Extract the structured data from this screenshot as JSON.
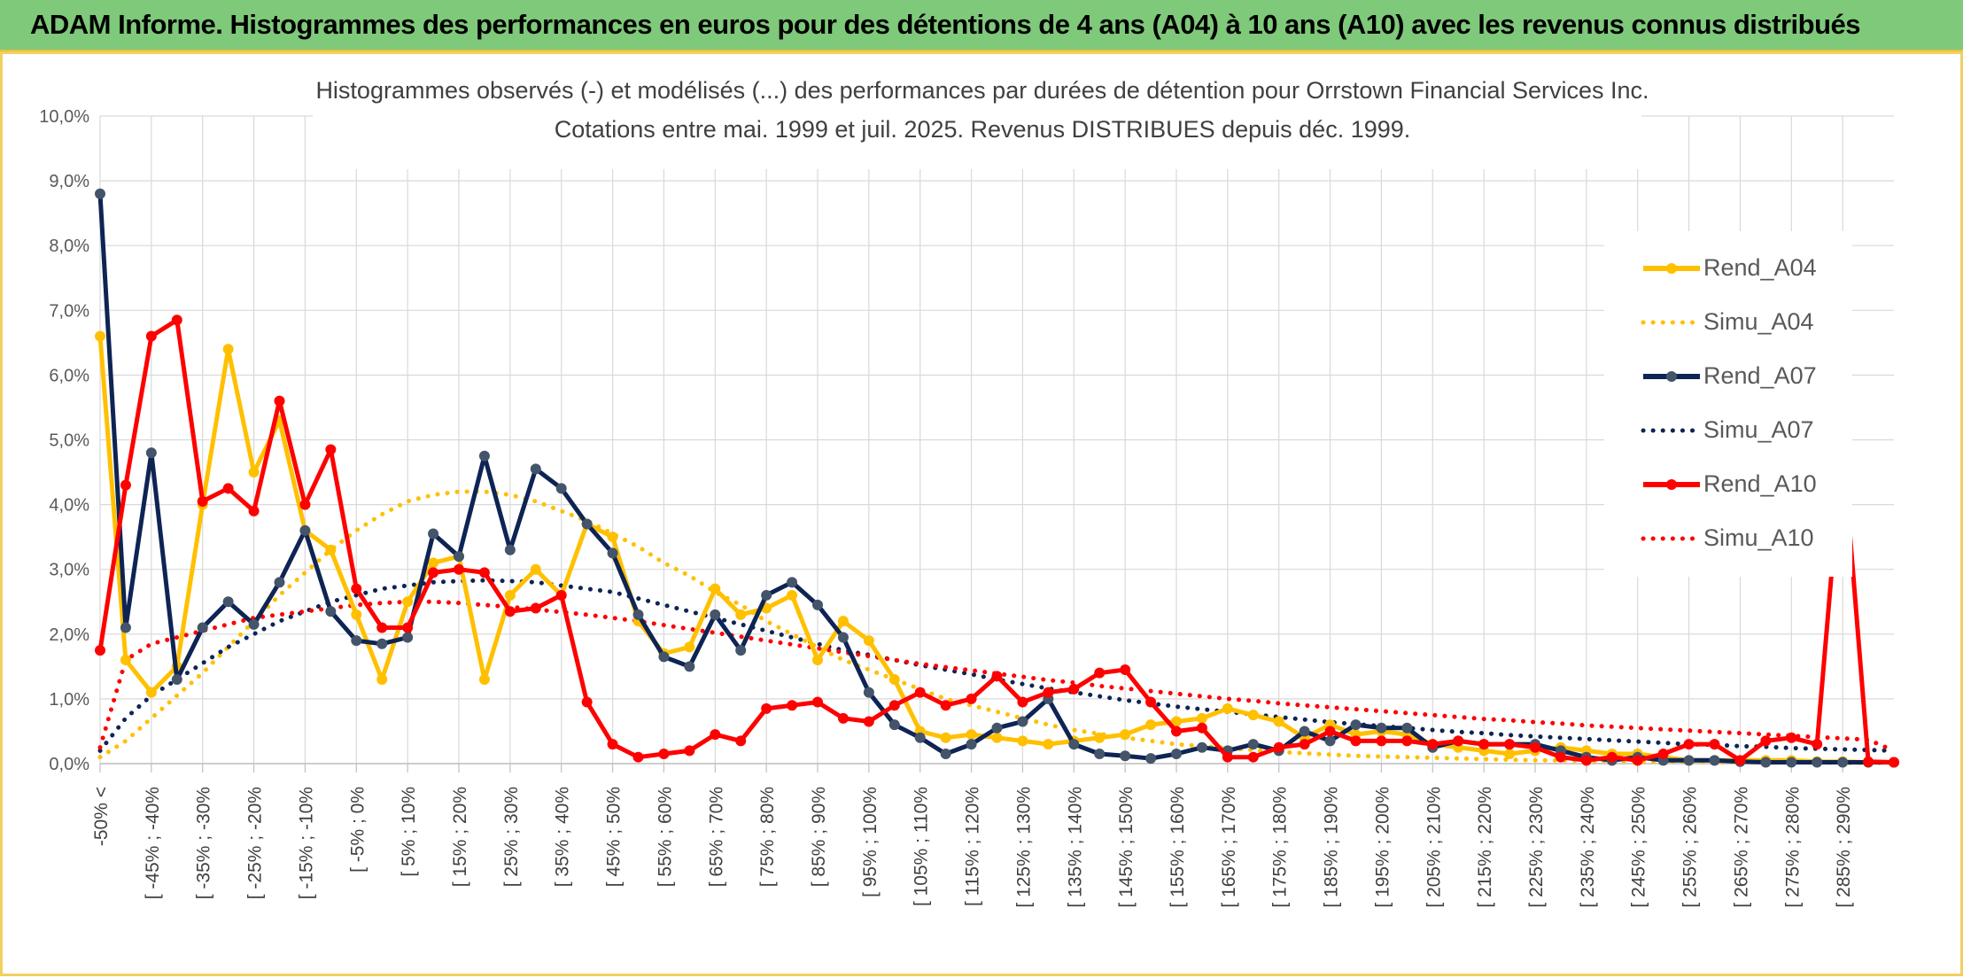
{
  "banner": {
    "title": "ADAM Informe. Histogrammes des performances en euros pour des détentions de 4 ans (A04) à 10 ans (A10) avec les revenus connus distribués"
  },
  "colors": {
    "banner_bg": "#7fc97a",
    "A04": "#ffc000",
    "A07": "#0e2454",
    "A10": "#ff0000",
    "A07_marker": "#44546a",
    "grid": "#d9d9d9"
  },
  "chart_data": {
    "type": "line",
    "title": "Histogrammes observés (-) et modélisés (...) des performances par durées de détention pour Orrstown Financial Services Inc.",
    "subtitle": "Cotations entre mai. 1999 et juil. 2025. Revenus DISTRIBUES depuis déc. 1999.",
    "xlabel": "",
    "ylabel": "",
    "ylim": [
      0,
      10
    ],
    "y_ticks": [
      "0,0%",
      "1,0%",
      "2,0%",
      "3,0%",
      "4,0%",
      "5,0%",
      "6,0%",
      "7,0%",
      "8,0%",
      "9,0%",
      "10,0%"
    ],
    "grid": true,
    "legend_position": "right",
    "x_tick_labels": [
      "-50% <",
      "[ -45% ; -40%",
      "[ -35% ; -30%",
      "[ -25% ; -20%",
      "[ -15% ; -10%",
      "[ -5% ; 0%",
      "[ 5% ; 10%",
      "[ 15% ; 20%",
      "[ 25% ; 30%",
      "[ 35% ; 40%",
      "[ 45% ; 50%",
      "[ 55% ; 60%",
      "[ 65% ; 70%",
      "[ 75% ; 80%",
      "[ 85% ; 90%",
      "[ 95% ; 100%",
      "[ 105% ; 110%",
      "[ 115% ; 120%",
      "[ 125% ; 130%",
      "[ 135% ; 140%",
      "[ 145% ; 150%",
      "[ 155% ; 160%",
      "[ 165% ; 170%",
      "[ 175% ; 180%",
      "[ 185% ; 190%",
      "[ 195% ; 200%",
      "[ 205% ; 210%",
      "[ 215% ; 220%",
      "[ 225% ; 230%",
      "[ 235% ; 240%",
      "[ 245% ; 250%",
      "[ 255% ; 260%",
      "[ 265% ; 270%",
      "[ 275% ; 280%",
      "[ 285% ; 290%"
    ],
    "series": [
      {
        "name": "Rend_A04",
        "style": "solid",
        "color": "#ffc000",
        "values": [
          6.6,
          1.6,
          1.1,
          1.5,
          4.0,
          6.4,
          4.5,
          5.3,
          3.6,
          3.3,
          2.3,
          1.3,
          2.5,
          3.1,
          3.2,
          1.3,
          2.6,
          3.0,
          2.6,
          3.7,
          3.5,
          2.2,
          1.7,
          1.8,
          2.7,
          2.3,
          2.4,
          2.6,
          1.6,
          2.2,
          1.9,
          1.3,
          0.5,
          0.4,
          0.45,
          0.4,
          0.35,
          0.3,
          0.35,
          0.4,
          0.45,
          0.6,
          0.65,
          0.7,
          0.85,
          0.75,
          0.65,
          0.4,
          0.6,
          0.45,
          0.5,
          0.45,
          0.3,
          0.25,
          0.2,
          0.15,
          0.2,
          0.25,
          0.2,
          0.15,
          0.15,
          0.1,
          0.05,
          0.05,
          0.05,
          0.05,
          0.05,
          0.03,
          0.03,
          0.02,
          0.02
        ]
      },
      {
        "name": "Simu_A04",
        "style": "dotted",
        "color": "#ffc000",
        "values": [
          0.1,
          0.35,
          0.7,
          1.05,
          1.4,
          1.8,
          2.2,
          2.6,
          2.95,
          3.3,
          3.6,
          3.85,
          4.05,
          4.15,
          4.2,
          4.2,
          4.15,
          4.05,
          3.9,
          3.75,
          3.55,
          3.35,
          3.1,
          2.9,
          2.65,
          2.45,
          2.2,
          2.0,
          1.8,
          1.6,
          1.45,
          1.3,
          1.15,
          1.0,
          0.9,
          0.8,
          0.7,
          0.6,
          0.52,
          0.46,
          0.4,
          0.35,
          0.3,
          0.27,
          0.24,
          0.21,
          0.18,
          0.16,
          0.14,
          0.12,
          0.11,
          0.1,
          0.09,
          0.08,
          0.07,
          0.06,
          0.05,
          0.05,
          0.04,
          0.04,
          0.03,
          0.03,
          0.03,
          0.02,
          0.02,
          0.02,
          0.02,
          0.02,
          0.01,
          0.01,
          0.01
        ]
      },
      {
        "name": "Rend_A07",
        "style": "solid",
        "color": "#0e2454",
        "values": [
          8.8,
          2.1,
          4.8,
          1.3,
          2.1,
          2.5,
          2.15,
          2.8,
          3.6,
          2.35,
          1.9,
          1.85,
          1.95,
          3.55,
          3.2,
          4.75,
          3.3,
          4.55,
          4.25,
          3.7,
          3.25,
          2.3,
          1.65,
          1.5,
          2.3,
          1.75,
          2.6,
          2.8,
          2.45,
          1.95,
          1.1,
          0.6,
          0.4,
          0.15,
          0.3,
          0.55,
          0.65,
          1.0,
          0.3,
          0.15,
          0.12,
          0.08,
          0.15,
          0.25,
          0.2,
          0.3,
          0.2,
          0.5,
          0.35,
          0.6,
          0.55,
          0.55,
          0.25,
          0.35,
          0.3,
          0.3,
          0.3,
          0.2,
          0.1,
          0.05,
          0.1,
          0.05,
          0.05,
          0.05,
          0.03,
          0.02,
          0.02,
          0.02,
          0.02,
          0.02,
          0.02
        ]
      },
      {
        "name": "Simu_A07",
        "style": "dotted",
        "color": "#0e2454",
        "values": [
          0.2,
          0.7,
          1.05,
          1.3,
          1.55,
          1.8,
          2.0,
          2.2,
          2.35,
          2.5,
          2.6,
          2.7,
          2.75,
          2.8,
          2.82,
          2.83,
          2.82,
          2.8,
          2.75,
          2.7,
          2.65,
          2.55,
          2.45,
          2.35,
          2.25,
          2.15,
          2.05,
          1.95,
          1.85,
          1.75,
          1.68,
          1.6,
          1.52,
          1.45,
          1.38,
          1.3,
          1.23,
          1.16,
          1.1,
          1.04,
          0.98,
          0.93,
          0.88,
          0.84,
          0.8,
          0.76,
          0.72,
          0.68,
          0.64,
          0.61,
          0.58,
          0.55,
          0.52,
          0.49,
          0.47,
          0.44,
          0.42,
          0.4,
          0.38,
          0.36,
          0.34,
          0.32,
          0.3,
          0.29,
          0.27,
          0.26,
          0.24,
          0.23,
          0.22,
          0.21,
          0.2
        ]
      },
      {
        "name": "Rend_A10",
        "style": "solid",
        "color": "#ff0000",
        "values": [
          1.75,
          4.3,
          6.6,
          6.85,
          4.05,
          4.25,
          3.9,
          5.6,
          4.0,
          4.85,
          2.7,
          2.1,
          2.1,
          2.95,
          3.0,
          2.95,
          2.35,
          2.4,
          2.6,
          0.95,
          0.3,
          0.1,
          0.15,
          0.2,
          0.45,
          0.35,
          0.85,
          0.9,
          0.95,
          0.7,
          0.65,
          0.9,
          1.1,
          0.9,
          1.0,
          1.35,
          0.95,
          1.1,
          1.15,
          1.4,
          1.45,
          0.95,
          0.5,
          0.55,
          0.1,
          0.1,
          0.25,
          0.3,
          0.5,
          0.35,
          0.35,
          0.35,
          0.3,
          0.35,
          0.3,
          0.3,
          0.25,
          0.1,
          0.05,
          0.1,
          0.05,
          0.15,
          0.3,
          0.3,
          0.05,
          0.35,
          0.4,
          0.3,
          4.95,
          0.03,
          0.02
        ]
      },
      {
        "name": "Simu_A10",
        "style": "dotted",
        "color": "#ff0000",
        "values": [
          0.25,
          1.6,
          1.85,
          1.95,
          2.05,
          2.15,
          2.25,
          2.3,
          2.35,
          2.4,
          2.45,
          2.48,
          2.5,
          2.5,
          2.48,
          2.45,
          2.42,
          2.38,
          2.34,
          2.3,
          2.25,
          2.2,
          2.14,
          2.08,
          2.02,
          1.96,
          1.9,
          1.84,
          1.78,
          1.72,
          1.66,
          1.6,
          1.54,
          1.49,
          1.44,
          1.39,
          1.34,
          1.29,
          1.25,
          1.2,
          1.16,
          1.12,
          1.08,
          1.04,
          1.0,
          0.97,
          0.93,
          0.9,
          0.87,
          0.84,
          0.81,
          0.78,
          0.75,
          0.72,
          0.69,
          0.67,
          0.64,
          0.62,
          0.59,
          0.57,
          0.55,
          0.53,
          0.51,
          0.49,
          0.47,
          0.45,
          0.43,
          0.41,
          0.39,
          0.37,
          0.2
        ]
      }
    ]
  }
}
